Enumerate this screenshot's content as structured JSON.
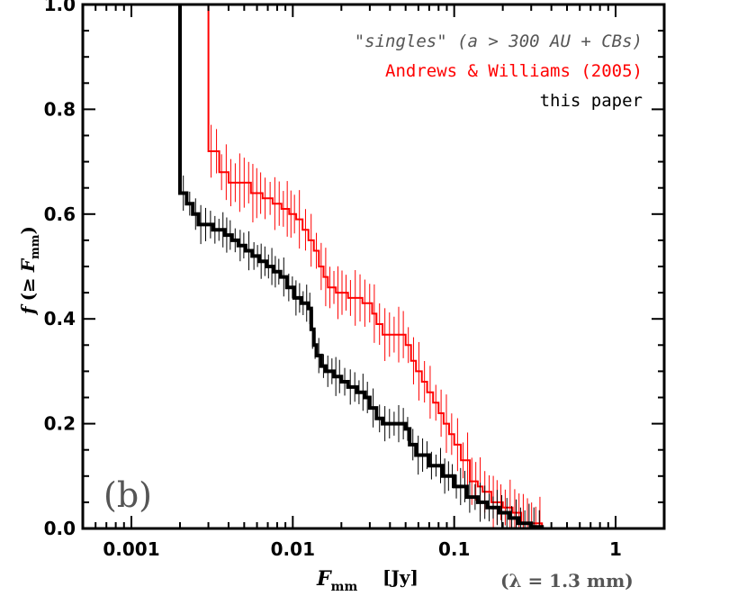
{
  "chart_data": {
    "type": "line",
    "title": "",
    "panel_label": "(b)",
    "xlabel": {
      "symbol": "F",
      "subscript": "mm",
      "unit": "[Jy]",
      "note": "(λ = 1.3 mm)"
    },
    "ylabel": {
      "func": "f",
      "open": "(≥",
      "symbol": "F",
      "subscript": "mm",
      "close": ")"
    },
    "x_scale": "log",
    "xlim": [
      0.0005,
      2
    ],
    "ylim": [
      0,
      1
    ],
    "x_ticks": [
      {
        "value": 0.001,
        "label": "0.001"
      },
      {
        "value": 0.01,
        "label": "0.01"
      },
      {
        "value": 0.1,
        "label": "0.1"
      },
      {
        "value": 1,
        "label": "1"
      }
    ],
    "y_ticks": [
      {
        "value": 0.0,
        "label": "0.0"
      },
      {
        "value": 0.2,
        "label": "0.2"
      },
      {
        "value": 0.4,
        "label": "0.4"
      },
      {
        "value": 0.6,
        "label": "0.6"
      },
      {
        "value": 0.8,
        "label": "0.8"
      },
      {
        "value": 1.0,
        "label": "1.0"
      }
    ],
    "grid": false,
    "legend": {
      "placement": "top-right",
      "entries": [
        {
          "text": "\"singles\" (a > 300 AU + CBs)",
          "color": "#555555"
        },
        {
          "text": "Andrews & Williams (2005)",
          "color": "#ff0000"
        },
        {
          "text": "this paper",
          "color": "#000000"
        }
      ]
    },
    "series": [
      {
        "color": "#ff0000",
        "error": 0.045,
        "points": [
          [
            0.003,
            1.0
          ],
          [
            0.003,
            0.72
          ],
          [
            0.0035,
            0.72
          ],
          [
            0.0035,
            0.68
          ],
          [
            0.004,
            0.68
          ],
          [
            0.004,
            0.66
          ],
          [
            0.0055,
            0.66
          ],
          [
            0.0055,
            0.64
          ],
          [
            0.0065,
            0.64
          ],
          [
            0.0065,
            0.63
          ],
          [
            0.0075,
            0.63
          ],
          [
            0.0075,
            0.62
          ],
          [
            0.0085,
            0.62
          ],
          [
            0.0085,
            0.61
          ],
          [
            0.0095,
            0.61
          ],
          [
            0.0095,
            0.6
          ],
          [
            0.0105,
            0.6
          ],
          [
            0.0105,
            0.59
          ],
          [
            0.0115,
            0.59
          ],
          [
            0.0115,
            0.57
          ],
          [
            0.0125,
            0.57
          ],
          [
            0.0125,
            0.55
          ],
          [
            0.0135,
            0.55
          ],
          [
            0.0135,
            0.53
          ],
          [
            0.0145,
            0.53
          ],
          [
            0.0145,
            0.5
          ],
          [
            0.0155,
            0.5
          ],
          [
            0.0155,
            0.48
          ],
          [
            0.0165,
            0.48
          ],
          [
            0.0165,
            0.46
          ],
          [
            0.0185,
            0.46
          ],
          [
            0.0185,
            0.45
          ],
          [
            0.022,
            0.45
          ],
          [
            0.022,
            0.44
          ],
          [
            0.027,
            0.44
          ],
          [
            0.027,
            0.43
          ],
          [
            0.031,
            0.43
          ],
          [
            0.031,
            0.41
          ],
          [
            0.033,
            0.41
          ],
          [
            0.033,
            0.39
          ],
          [
            0.036,
            0.39
          ],
          [
            0.036,
            0.37
          ],
          [
            0.05,
            0.37
          ],
          [
            0.05,
            0.35
          ],
          [
            0.054,
            0.35
          ],
          [
            0.054,
            0.32
          ],
          [
            0.058,
            0.32
          ],
          [
            0.058,
            0.3
          ],
          [
            0.063,
            0.3
          ],
          [
            0.063,
            0.28
          ],
          [
            0.068,
            0.28
          ],
          [
            0.068,
            0.26
          ],
          [
            0.074,
            0.26
          ],
          [
            0.074,
            0.24
          ],
          [
            0.08,
            0.24
          ],
          [
            0.08,
            0.22
          ],
          [
            0.086,
            0.22
          ],
          [
            0.086,
            0.2
          ],
          [
            0.093,
            0.2
          ],
          [
            0.093,
            0.18
          ],
          [
            0.1,
            0.18
          ],
          [
            0.1,
            0.16
          ],
          [
            0.11,
            0.16
          ],
          [
            0.11,
            0.13
          ],
          [
            0.125,
            0.13
          ],
          [
            0.125,
            0.09
          ],
          [
            0.14,
            0.09
          ],
          [
            0.14,
            0.08
          ],
          [
            0.15,
            0.08
          ],
          [
            0.15,
            0.07
          ],
          [
            0.17,
            0.07
          ],
          [
            0.17,
            0.05
          ],
          [
            0.2,
            0.05
          ],
          [
            0.2,
            0.04
          ],
          [
            0.23,
            0.04
          ],
          [
            0.23,
            0.03
          ],
          [
            0.26,
            0.03
          ],
          [
            0.26,
            0.01
          ],
          [
            0.35,
            0.01
          ],
          [
            0.35,
            0.0
          ]
        ]
      },
      {
        "color": "#000000",
        "error": 0.03,
        "points": [
          [
            0.002,
            1.0
          ],
          [
            0.002,
            0.64
          ],
          [
            0.0022,
            0.64
          ],
          [
            0.0022,
            0.62
          ],
          [
            0.0024,
            0.62
          ],
          [
            0.0024,
            0.6
          ],
          [
            0.0026,
            0.6
          ],
          [
            0.0026,
            0.58
          ],
          [
            0.0032,
            0.58
          ],
          [
            0.0032,
            0.57
          ],
          [
            0.0038,
            0.57
          ],
          [
            0.0038,
            0.56
          ],
          [
            0.0042,
            0.56
          ],
          [
            0.0042,
            0.55
          ],
          [
            0.0046,
            0.55
          ],
          [
            0.0046,
            0.54
          ],
          [
            0.0051,
            0.54
          ],
          [
            0.0051,
            0.53
          ],
          [
            0.0056,
            0.53
          ],
          [
            0.0056,
            0.52
          ],
          [
            0.0062,
            0.52
          ],
          [
            0.0062,
            0.51
          ],
          [
            0.0069,
            0.51
          ],
          [
            0.0069,
            0.5
          ],
          [
            0.0076,
            0.5
          ],
          [
            0.0076,
            0.49
          ],
          [
            0.0084,
            0.49
          ],
          [
            0.0084,
            0.48
          ],
          [
            0.0092,
            0.48
          ],
          [
            0.0092,
            0.46
          ],
          [
            0.0102,
            0.46
          ],
          [
            0.0102,
            0.44
          ],
          [
            0.0113,
            0.44
          ],
          [
            0.0113,
            0.43
          ],
          [
            0.0125,
            0.43
          ],
          [
            0.0125,
            0.42
          ],
          [
            0.013,
            0.42
          ],
          [
            0.013,
            0.38
          ],
          [
            0.0135,
            0.38
          ],
          [
            0.0135,
            0.35
          ],
          [
            0.014,
            0.35
          ],
          [
            0.014,
            0.33
          ],
          [
            0.015,
            0.33
          ],
          [
            0.015,
            0.31
          ],
          [
            0.016,
            0.31
          ],
          [
            0.016,
            0.3
          ],
          [
            0.018,
            0.3
          ],
          [
            0.018,
            0.29
          ],
          [
            0.02,
            0.29
          ],
          [
            0.02,
            0.28
          ],
          [
            0.022,
            0.28
          ],
          [
            0.022,
            0.27
          ],
          [
            0.025,
            0.27
          ],
          [
            0.025,
            0.26
          ],
          [
            0.028,
            0.26
          ],
          [
            0.028,
            0.25
          ],
          [
            0.03,
            0.25
          ],
          [
            0.03,
            0.23
          ],
          [
            0.033,
            0.23
          ],
          [
            0.033,
            0.21
          ],
          [
            0.036,
            0.21
          ],
          [
            0.036,
            0.2
          ],
          [
            0.05,
            0.2
          ],
          [
            0.05,
            0.19
          ],
          [
            0.053,
            0.19
          ],
          [
            0.053,
            0.16
          ],
          [
            0.058,
            0.16
          ],
          [
            0.058,
            0.14
          ],
          [
            0.07,
            0.14
          ],
          [
            0.07,
            0.12
          ],
          [
            0.085,
            0.12
          ],
          [
            0.085,
            0.1
          ],
          [
            0.1,
            0.1
          ],
          [
            0.1,
            0.08
          ],
          [
            0.12,
            0.08
          ],
          [
            0.12,
            0.06
          ],
          [
            0.14,
            0.06
          ],
          [
            0.14,
            0.05
          ],
          [
            0.16,
            0.05
          ],
          [
            0.16,
            0.04
          ],
          [
            0.19,
            0.04
          ],
          [
            0.19,
            0.03
          ],
          [
            0.22,
            0.03
          ],
          [
            0.22,
            0.02
          ],
          [
            0.25,
            0.02
          ],
          [
            0.25,
            0.01
          ],
          [
            0.3,
            0.01
          ],
          [
            0.3,
            0.003
          ],
          [
            0.35,
            0.003
          ],
          [
            0.35,
            0.0
          ]
        ]
      }
    ]
  }
}
